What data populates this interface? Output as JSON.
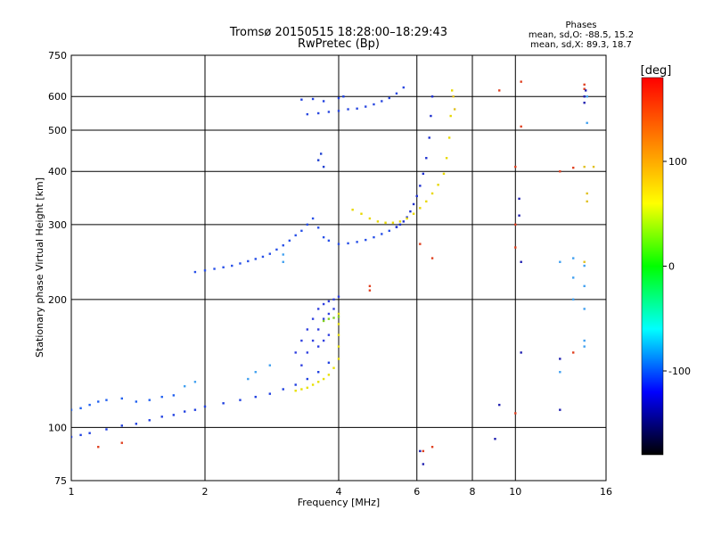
{
  "chart_data": {
    "type": "scatter",
    "title": "Tromsø 20150515 18:28:00–18:29:43",
    "subtitle": "RwPretec (Bp)",
    "xlabel": "Frequency [MHz]",
    "ylabel": "Stationary phase Virtual Height [km]",
    "x_scale": "log",
    "y_scale": "log",
    "xlim": [
      1,
      16
    ],
    "ylim": [
      75,
      750
    ],
    "x_ticks": [
      1,
      2,
      4,
      6,
      8,
      10,
      16
    ],
    "y_ticks": [
      75,
      100,
      200,
      300,
      400,
      500,
      600,
      750
    ],
    "grid": true,
    "phases_info": {
      "title": "Phases",
      "line1": "mean, sd,O: -88.5, 15.2",
      "line2": "mean, sd,X: 89.3, 18.7"
    },
    "colorbar": {
      "label": "[deg]",
      "ticks": [
        100,
        0,
        -100
      ],
      "range": [
        -180,
        180
      ],
      "gradient": [
        "#ff0000",
        "#ff8000",
        "#ffff00",
        "#00ff00",
        "#00ffff",
        "#0000ff",
        "#000000"
      ]
    },
    "series": [
      {
        "color": "#2040e0",
        "points": [
          [
            1.0,
            95
          ],
          [
            1.05,
            96
          ],
          [
            1.1,
            97
          ],
          [
            1.2,
            99
          ],
          [
            1.3,
            101
          ],
          [
            1.4,
            102
          ],
          [
            1.5,
            104
          ],
          [
            1.6,
            106
          ],
          [
            1.7,
            107
          ],
          [
            1.8,
            109
          ],
          [
            1.9,
            110
          ],
          [
            2.0,
            112
          ],
          [
            2.2,
            114
          ],
          [
            2.4,
            116
          ],
          [
            2.6,
            118
          ],
          [
            2.8,
            120
          ],
          [
            3.0,
            123
          ],
          [
            3.2,
            126
          ],
          [
            3.4,
            130
          ],
          [
            3.6,
            135
          ],
          [
            3.8,
            142
          ]
        ]
      },
      {
        "color": "#2060f0",
        "points": [
          [
            1.0,
            110
          ],
          [
            1.05,
            111
          ],
          [
            1.1,
            113
          ],
          [
            1.15,
            115
          ],
          [
            1.2,
            116
          ],
          [
            1.3,
            117
          ],
          [
            1.4,
            115
          ],
          [
            1.5,
            116
          ],
          [
            1.6,
            118
          ],
          [
            1.7,
            119
          ]
        ]
      },
      {
        "color": "#2850e8",
        "points": [
          [
            1.9,
            232
          ],
          [
            2.0,
            234
          ],
          [
            2.1,
            236
          ],
          [
            2.2,
            238
          ],
          [
            2.3,
            240
          ],
          [
            2.4,
            243
          ],
          [
            2.5,
            246
          ],
          [
            2.6,
            249
          ],
          [
            2.7,
            252
          ],
          [
            2.8,
            256
          ],
          [
            2.9,
            262
          ],
          [
            3.0,
            268
          ],
          [
            3.1,
            275
          ],
          [
            3.2,
            283
          ],
          [
            3.3,
            290
          ],
          [
            3.4,
            300
          ],
          [
            3.5,
            310
          ],
          [
            3.6,
            295
          ],
          [
            3.7,
            280
          ],
          [
            3.8,
            275
          ],
          [
            4.0,
            270
          ],
          [
            4.2,
            271
          ],
          [
            4.4,
            273
          ],
          [
            4.6,
            276
          ],
          [
            4.8,
            280
          ],
          [
            5.0,
            285
          ],
          [
            5.2,
            290
          ],
          [
            5.4,
            296
          ]
        ]
      },
      {
        "color": "#1e30d0",
        "points": [
          [
            5.4,
            296
          ],
          [
            5.5,
            300
          ],
          [
            5.6,
            305
          ],
          [
            5.7,
            312
          ],
          [
            5.8,
            322
          ],
          [
            5.9,
            335
          ],
          [
            6.0,
            350
          ],
          [
            6.1,
            370
          ],
          [
            6.2,
            395
          ],
          [
            6.3,
            430
          ],
          [
            6.4,
            480
          ],
          [
            6.45,
            540
          ],
          [
            6.5,
            600
          ]
        ]
      },
      {
        "color": "#3040e0",
        "points": [
          [
            3.2,
            150
          ],
          [
            3.3,
            160
          ],
          [
            3.4,
            170
          ],
          [
            3.5,
            180
          ],
          [
            3.6,
            190
          ],
          [
            3.7,
            195
          ],
          [
            3.8,
            198
          ],
          [
            3.9,
            200
          ],
          [
            4.0,
            203
          ],
          [
            3.3,
            140
          ],
          [
            3.4,
            150
          ],
          [
            3.5,
            160
          ],
          [
            3.6,
            170
          ],
          [
            3.7,
            180
          ],
          [
            3.8,
            185
          ],
          [
            3.9,
            190
          ],
          [
            3.6,
            155
          ],
          [
            3.7,
            160
          ],
          [
            3.8,
            165
          ]
        ]
      },
      {
        "color": "#e8e000",
        "points": [
          [
            3.2,
            122
          ],
          [
            3.3,
            123
          ],
          [
            3.4,
            124
          ],
          [
            3.5,
            126
          ],
          [
            3.6,
            128
          ],
          [
            3.7,
            130
          ],
          [
            3.8,
            133
          ],
          [
            3.9,
            138
          ],
          [
            4.0,
            145
          ],
          [
            4.0,
            155
          ],
          [
            4.0,
            165
          ],
          [
            4.0,
            175
          ],
          [
            4.0,
            185
          ]
        ]
      },
      {
        "color": "#e8d800",
        "points": [
          [
            4.3,
            325
          ],
          [
            4.5,
            318
          ],
          [
            4.7,
            310
          ],
          [
            4.9,
            305
          ],
          [
            5.1,
            303
          ],
          [
            5.3,
            303
          ],
          [
            5.5,
            305
          ],
          [
            5.7,
            310
          ],
          [
            5.9,
            318
          ],
          [
            6.1,
            328
          ],
          [
            6.3,
            340
          ],
          [
            6.5,
            355
          ],
          [
            6.7,
            372
          ],
          [
            6.9,
            395
          ],
          [
            7.0,
            430
          ],
          [
            7.1,
            480
          ],
          [
            7.15,
            540
          ],
          [
            7.2,
            620
          ]
        ]
      },
      {
        "color": "#80d020",
        "points": [
          [
            3.7,
            178
          ],
          [
            3.8,
            180
          ],
          [
            3.9,
            181
          ],
          [
            4.0,
            182
          ]
        ]
      },
      {
        "color": "#2a48e0",
        "points": [
          [
            3.4,
            545
          ],
          [
            3.6,
            548
          ],
          [
            3.8,
            552
          ],
          [
            4.0,
            555
          ],
          [
            4.2,
            560
          ],
          [
            4.4,
            562
          ],
          [
            4.6,
            568
          ],
          [
            4.8,
            575
          ],
          [
            5.0,
            585
          ],
          [
            5.2,
            595
          ],
          [
            5.4,
            610
          ],
          [
            5.6,
            630
          ]
        ]
      },
      {
        "color": "#2040e0",
        "points": [
          [
            3.3,
            590
          ],
          [
            3.5,
            592
          ],
          [
            3.7,
            585
          ],
          [
            4.0,
            595
          ],
          [
            4.1,
            600
          ]
        ]
      },
      {
        "color": "#1e40d0",
        "points": [
          [
            3.6,
            425
          ],
          [
            3.65,
            440
          ],
          [
            3.7,
            410
          ]
        ]
      },
      {
        "color": "#e04020",
        "points": [
          [
            1.15,
            90
          ],
          [
            1.3,
            92
          ],
          [
            4.7,
            215
          ],
          [
            4.7,
            210
          ],
          [
            6.1,
            270
          ],
          [
            6.5,
            250
          ],
          [
            6.2,
            88
          ],
          [
            6.5,
            90
          ],
          [
            10,
            410
          ],
          [
            10,
            300
          ],
          [
            10,
            265
          ],
          [
            10.3,
            650
          ],
          [
            10.3,
            510
          ],
          [
            14.3,
            640
          ],
          [
            14.3,
            625
          ],
          [
            9.2,
            620
          ],
          [
            10,
            108
          ],
          [
            13.5,
            408
          ],
          [
            13.5,
            150
          ],
          [
            12.6,
            400
          ]
        ]
      },
      {
        "color": "#40a0f0",
        "points": [
          [
            3.0,
            255
          ],
          [
            3.0,
            245
          ],
          [
            2.5,
            130
          ],
          [
            2.6,
            135
          ],
          [
            2.8,
            140
          ],
          [
            1.8,
            125
          ],
          [
            1.9,
            128
          ],
          [
            12.6,
            245
          ],
          [
            12.6,
            135
          ],
          [
            14.3,
            240
          ],
          [
            14.3,
            215
          ],
          [
            14.3,
            190
          ],
          [
            14.3,
            160
          ],
          [
            14.3,
            155
          ],
          [
            13.5,
            250
          ],
          [
            13.5,
            225
          ],
          [
            13.5,
            200
          ],
          [
            14.5,
            600
          ],
          [
            14.5,
            520
          ]
        ]
      },
      {
        "color": "#e0c020",
        "points": [
          [
            14.5,
            355
          ],
          [
            14.5,
            340
          ],
          [
            15,
            410
          ],
          [
            14.3,
            410
          ],
          [
            14.3,
            245
          ],
          [
            7.3,
            560
          ],
          [
            7.25,
            600
          ]
        ]
      },
      {
        "color": "#2020b0",
        "points": [
          [
            6.2,
            82
          ],
          [
            6.1,
            88
          ],
          [
            9.2,
            113
          ],
          [
            9.0,
            94
          ],
          [
            10.3,
            150
          ],
          [
            10.3,
            245
          ],
          [
            10.2,
            315
          ],
          [
            10.2,
            345
          ],
          [
            12.6,
            145
          ],
          [
            12.6,
            110
          ],
          [
            14.3,
            600
          ],
          [
            14.3,
            580
          ],
          [
            14.4,
            620
          ]
        ]
      }
    ]
  }
}
